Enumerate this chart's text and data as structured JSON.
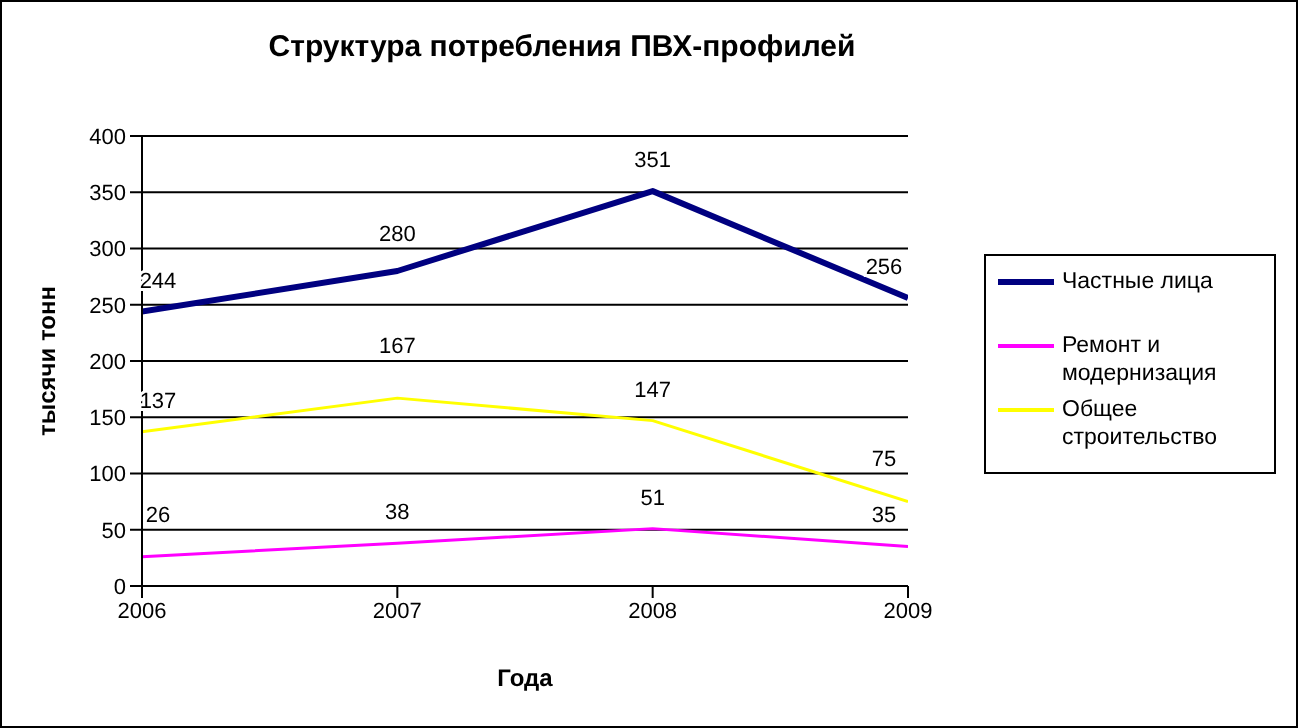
{
  "chart_data": {
    "type": "line",
    "title": "Структура потребления ПВХ-профилей",
    "xlabel": "Года",
    "ylabel": "тысячи тонн",
    "x": [
      2006,
      2007,
      2008,
      2009
    ],
    "series": [
      {
        "name": "Частные лица",
        "color": "#000080",
        "values": [
          244,
          280,
          351,
          256
        ]
      },
      {
        "name": "Ремонт и модернизация",
        "color": "#ff00ff",
        "values": [
          26,
          38,
          51,
          35
        ]
      },
      {
        "name": "Общее строительство",
        "color": "#ffff00",
        "values": [
          137,
          167,
          147,
          75
        ]
      }
    ],
    "xlim": [
      2006,
      2009
    ],
    "xticks": [
      2006,
      2007,
      2008,
      2009
    ],
    "ylim": [
      0,
      400
    ],
    "yticks": [
      0,
      50,
      100,
      150,
      200,
      250,
      300,
      350,
      400
    ],
    "grid": "y",
    "legend": "right",
    "marker": "none",
    "line_style": "solid",
    "data_labels": true
  }
}
